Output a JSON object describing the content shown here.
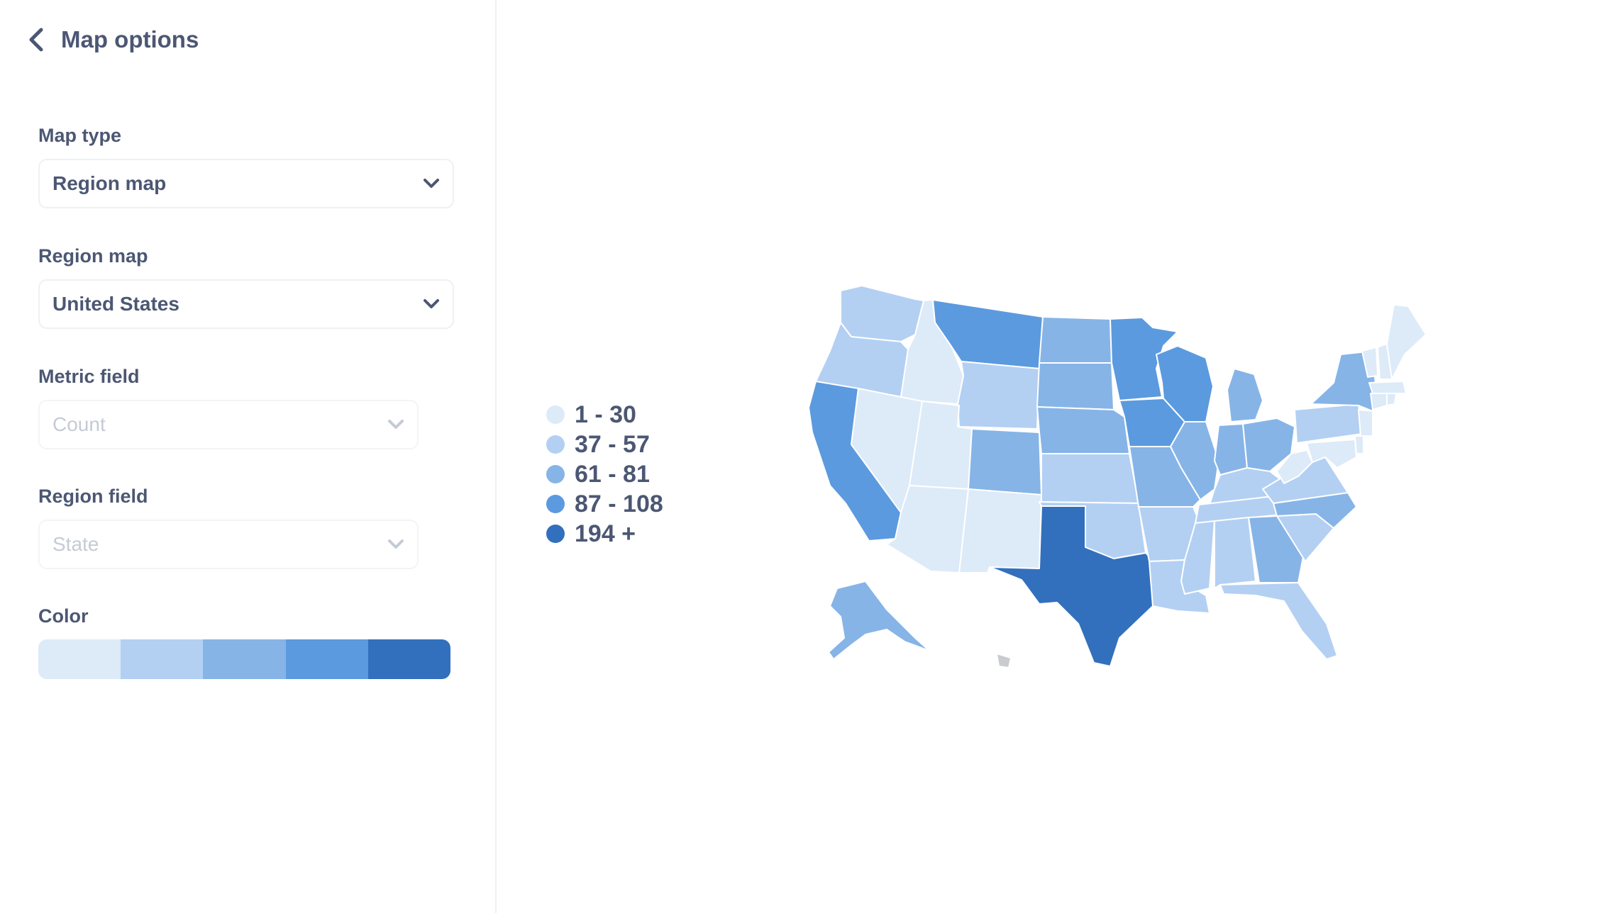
{
  "header": {
    "title": "Map options"
  },
  "fields": {
    "map_type": {
      "label": "Map type",
      "value": "Region map"
    },
    "region_map": {
      "label": "Region map",
      "value": "United States"
    },
    "metric_field": {
      "label": "Metric field",
      "value": "Count"
    },
    "region_field": {
      "label": "Region field",
      "value": "State"
    },
    "color": {
      "label": "Color"
    }
  },
  "palette": [
    "#ddeaf8",
    "#b3d0f3",
    "#86b4e7",
    "#5b9ade",
    "#3270bd"
  ],
  "legend": [
    {
      "label": "1 - 30",
      "color": "#ddeaf8"
    },
    {
      "label": "37 - 57",
      "color": "#b3d0f3"
    },
    {
      "label": "61 - 81",
      "color": "#86b4e7"
    },
    {
      "label": "87 - 108",
      "color": "#5b9ade"
    },
    {
      "label": "194 +",
      "color": "#3270bd"
    }
  ],
  "map_buckets": {
    "WA": 1,
    "OR": 1,
    "CA": 3,
    "NV": 0,
    "ID": 0,
    "MT": 3,
    "WY": 1,
    "UT": 0,
    "AZ": 0,
    "CO": 2,
    "NM": 0,
    "ND": 2,
    "SD": 2,
    "NE": 2,
    "KS": 1,
    "OK": 1,
    "TX": 4,
    "MN": 3,
    "IA": 3,
    "MO": 2,
    "AR": 1,
    "LA": 1,
    "WI": 3,
    "IL": 2,
    "MI": 2,
    "IN": 2,
    "OH": 2,
    "KY": 1,
    "TN": 1,
    "MS": 1,
    "AL": 1,
    "GA": 2,
    "FL": 1,
    "SC": 1,
    "NC": 2,
    "VA": 1,
    "WV": 0,
    "PA": 1,
    "NY": 2,
    "VT": 0,
    "NH": 0,
    "ME": 0,
    "MA": 0,
    "CT": 0,
    "RI": 0,
    "NJ": 0,
    "DE": 0,
    "MD": 0,
    "AK": 2,
    "HI": -1
  }
}
